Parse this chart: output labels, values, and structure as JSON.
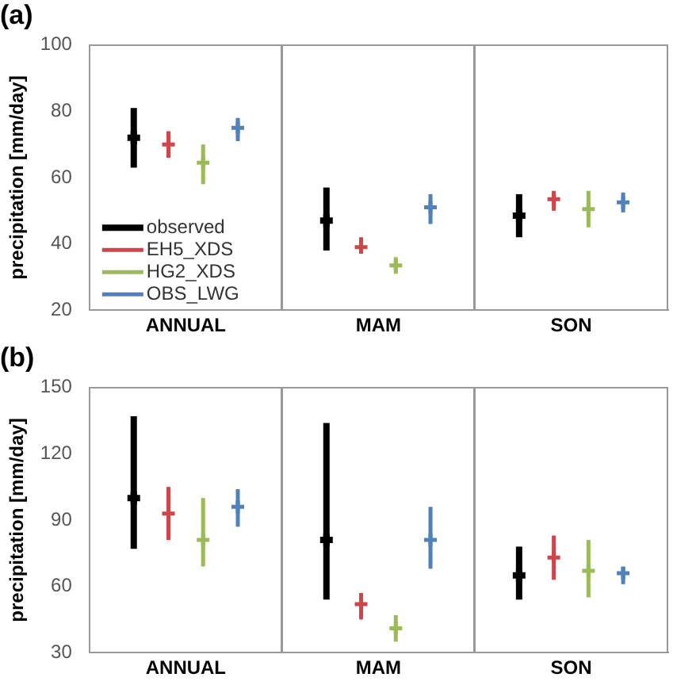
{
  "chart_data": [
    {
      "type": "scatter",
      "title": "(a)",
      "ylabel": "precipitation [mm/day]",
      "categories": [
        "ANNUAL",
        "MAM",
        "SON"
      ],
      "ylim": [
        20,
        100
      ],
      "yticks": [
        20,
        40,
        60,
        80,
        100
      ],
      "grid": "x",
      "legend": "bottom left",
      "marker": "cross",
      "series": [
        {
          "name": "observed",
          "color": "#000000",
          "values": [
            72,
            47,
            48.5
          ],
          "errors": [
            [
              63,
              81
            ],
            [
              38,
              57
            ],
            [
              42,
              55
            ]
          ]
        },
        {
          "name": "EH5_XDS",
          "color": "#d0454a",
          "values": [
            70,
            39,
            53.5
          ],
          "errors": [
            [
              66,
              74
            ],
            [
              37,
              42
            ],
            [
              50,
              56
            ]
          ]
        },
        {
          "name": "HG2_XDS",
          "color": "#9bbb59",
          "values": [
            64.5,
            33.5,
            50.5
          ],
          "errors": [
            [
              58,
              70
            ],
            [
              31,
              36
            ],
            [
              45,
              56
            ]
          ]
        },
        {
          "name": "OBS_LWG",
          "color": "#4f81bd",
          "values": [
            75,
            51,
            52.5
          ],
          "errors": [
            [
              71,
              78
            ],
            [
              46,
              55
            ],
            [
              49.5,
              55.5
            ]
          ]
        }
      ]
    },
    {
      "type": "scatter",
      "title": "(b)",
      "ylabel": "precipitation [mm/day]",
      "categories": [
        "ANNUAL",
        "MAM",
        "SON"
      ],
      "ylim": [
        30,
        150
      ],
      "yticks": [
        30,
        60,
        90,
        120,
        150
      ],
      "grid": "x",
      "legend": false,
      "marker": "cross",
      "series": [
        {
          "color": "#000000",
          "values": [
            100,
            81,
            65
          ],
          "errors": [
            [
              77,
              137
            ],
            [
              54,
              134
            ],
            [
              54,
              78
            ]
          ]
        },
        {
          "color": "#d0454a",
          "values": [
            93,
            52,
            73
          ],
          "errors": [
            [
              81,
              105
            ],
            [
              45,
              57
            ],
            [
              63,
              83
            ]
          ]
        },
        {
          "color": "#9bbb59",
          "values": [
            81,
            41,
            67
          ],
          "errors": [
            [
              69,
              100
            ],
            [
              35,
              47
            ],
            [
              55,
              81
            ]
          ]
        },
        {
          "color": "#4f81bd",
          "values": [
            96,
            81,
            66
          ],
          "errors": [
            [
              87,
              104
            ],
            [
              68,
              96
            ],
            [
              61,
              69
            ]
          ]
        }
      ]
    }
  ]
}
